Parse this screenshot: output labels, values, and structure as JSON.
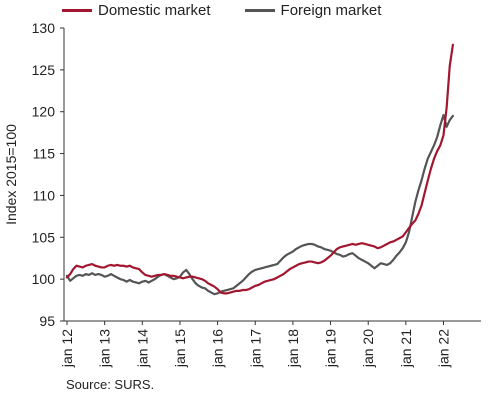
{
  "chart_data": {
    "type": "line",
    "ylabel": "Index 2015=100",
    "xlabel": "",
    "ylim": [
      95,
      130
    ],
    "yticks": [
      95,
      100,
      105,
      110,
      115,
      120,
      125,
      130
    ],
    "xticks": [
      "jan 12",
      "jan 13",
      "jan 14",
      "jan 15",
      "jan 16",
      "jan 17",
      "jan 18",
      "jan 19",
      "jan 20",
      "jan 21",
      "jan 22"
    ],
    "x_start": "2012-01",
    "x_end": "2022-04",
    "grid": false,
    "legend_position": "top-left",
    "source": "Source: SURS.",
    "series": [
      {
        "name": "Domestic market",
        "color": "#a3162f",
        "values": [
          100.2,
          100.6,
          101.2,
          101.6,
          101.5,
          101.4,
          101.6,
          101.7,
          101.8,
          101.6,
          101.5,
          101.4,
          101.4,
          101.6,
          101.7,
          101.6,
          101.7,
          101.6,
          101.6,
          101.5,
          101.6,
          101.4,
          101.3,
          101.2,
          100.8,
          100.5,
          100.4,
          100.3,
          100.4,
          100.5,
          100.5,
          100.6,
          100.5,
          100.4,
          100.4,
          100.3,
          100.2,
          100.1,
          100.2,
          100.3,
          100.3,
          100.2,
          100.1,
          100.0,
          99.8,
          99.5,
          99.3,
          99.1,
          98.8,
          98.4,
          98.3,
          98.3,
          98.4,
          98.5,
          98.6,
          98.6,
          98.7,
          98.7,
          98.8,
          99.0,
          99.2,
          99.3,
          99.5,
          99.7,
          99.8,
          99.9,
          100.0,
          100.2,
          100.4,
          100.6,
          100.9,
          101.2,
          101.4,
          101.6,
          101.8,
          101.9,
          102.0,
          102.1,
          102.1,
          102.0,
          101.9,
          102.0,
          102.2,
          102.5,
          102.8,
          103.2,
          103.6,
          103.8,
          103.9,
          104.0,
          104.1,
          104.2,
          104.1,
          104.2,
          104.3,
          104.2,
          104.1,
          104.0,
          103.9,
          103.7,
          103.8,
          104.0,
          104.2,
          104.4,
          104.5,
          104.7,
          104.9,
          105.1,
          105.6,
          106.1,
          106.6,
          107.0,
          107.8,
          108.8,
          110.3,
          111.8,
          113.2,
          114.4,
          115.3,
          116.0,
          117.2,
          120.5,
          125.5,
          128.0
        ]
      },
      {
        "name": "Foreign market",
        "color": "#555555",
        "values": [
          100.4,
          99.8,
          100.1,
          100.4,
          100.5,
          100.4,
          100.6,
          100.5,
          100.7,
          100.5,
          100.6,
          100.5,
          100.3,
          100.4,
          100.6,
          100.4,
          100.2,
          100.0,
          99.9,
          99.7,
          99.9,
          99.7,
          99.6,
          99.5,
          99.7,
          99.8,
          99.6,
          99.8,
          100.0,
          100.3,
          100.5,
          100.6,
          100.4,
          100.2,
          100.0,
          100.1,
          100.3,
          100.8,
          101.1,
          100.6,
          100.0,
          99.5,
          99.2,
          99.0,
          98.9,
          98.6,
          98.4,
          98.2,
          98.3,
          98.5,
          98.6,
          98.7,
          98.8,
          98.9,
          99.2,
          99.5,
          99.8,
          100.2,
          100.6,
          100.9,
          101.1,
          101.2,
          101.3,
          101.4,
          101.5,
          101.6,
          101.7,
          101.8,
          102.2,
          102.6,
          102.9,
          103.1,
          103.3,
          103.6,
          103.8,
          104.0,
          104.1,
          104.2,
          104.2,
          104.1,
          103.9,
          103.8,
          103.6,
          103.5,
          103.4,
          103.2,
          103.0,
          102.9,
          102.7,
          102.8,
          103.0,
          103.1,
          102.8,
          102.5,
          102.3,
          102.1,
          101.9,
          101.6,
          101.3,
          101.6,
          101.9,
          101.8,
          101.7,
          101.9,
          102.3,
          102.8,
          103.2,
          103.7,
          104.4,
          105.6,
          107.4,
          109.2,
          110.6,
          111.8,
          113.2,
          114.4,
          115.2,
          116.0,
          117.0,
          118.4,
          119.6,
          118.2,
          119.0,
          119.5
        ]
      }
    ]
  }
}
